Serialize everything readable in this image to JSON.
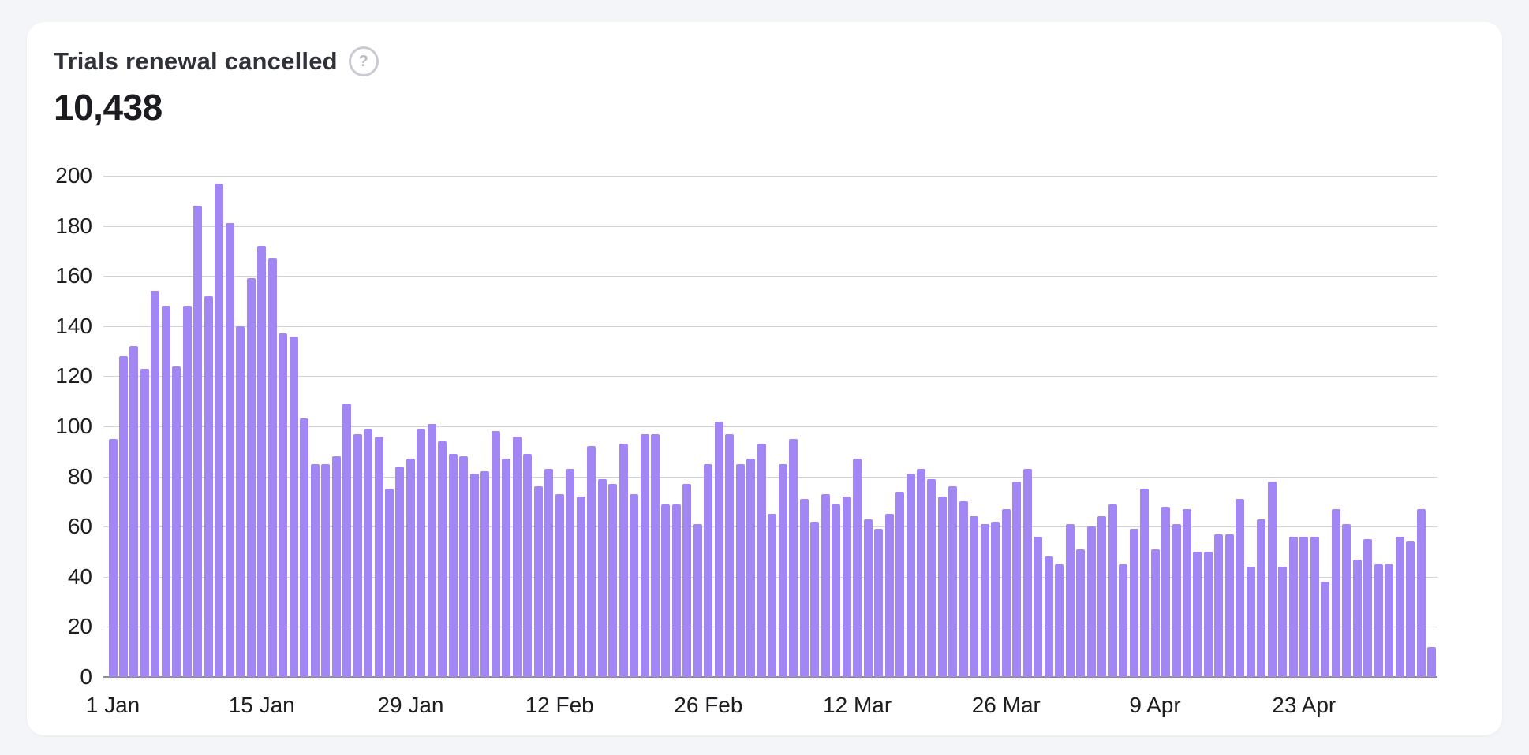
{
  "page": {
    "background": "#f4f5f8"
  },
  "card": {
    "title": "Trials renewal cancelled",
    "help_icon_glyph": "?",
    "total": "10,438"
  },
  "chart_data": {
    "type": "bar",
    "title": "Trials renewal cancelled",
    "total": 10438,
    "ylim": [
      0,
      200
    ],
    "y_ticks": [
      0,
      20,
      40,
      60,
      80,
      100,
      120,
      140,
      160,
      180,
      200
    ],
    "x_tick_labels": [
      "1 Jan",
      "15 Jan",
      "29 Jan",
      "12 Feb",
      "26 Feb",
      "12 Mar",
      "26 Mar",
      "9 Apr",
      "23 Apr"
    ],
    "x_tick_day_indices": [
      0,
      14,
      28,
      42,
      56,
      70,
      84,
      98,
      112
    ],
    "grid": "on",
    "legend": "none",
    "bar_color": "#a287f4",
    "grid_color": "#d2d3d7",
    "axis_line_color": "#8b8d92",
    "x": [
      "1 Jan",
      "2 Jan",
      "3 Jan",
      "4 Jan",
      "5 Jan",
      "6 Jan",
      "7 Jan",
      "8 Jan",
      "9 Jan",
      "10 Jan",
      "11 Jan",
      "12 Jan",
      "13 Jan",
      "14 Jan",
      "15 Jan",
      "16 Jan",
      "17 Jan",
      "18 Jan",
      "19 Jan",
      "20 Jan",
      "21 Jan",
      "22 Jan",
      "23 Jan",
      "24 Jan",
      "25 Jan",
      "26 Jan",
      "27 Jan",
      "28 Jan",
      "29 Jan",
      "30 Jan",
      "31 Jan",
      "1 Feb",
      "2 Feb",
      "3 Feb",
      "4 Feb",
      "5 Feb",
      "6 Feb",
      "7 Feb",
      "8 Feb",
      "9 Feb",
      "10 Feb",
      "11 Feb",
      "12 Feb",
      "13 Feb",
      "14 Feb",
      "15 Feb",
      "16 Feb",
      "17 Feb",
      "18 Feb",
      "19 Feb",
      "20 Feb",
      "21 Feb",
      "22 Feb",
      "23 Feb",
      "24 Feb",
      "25 Feb",
      "26 Feb",
      "27 Feb",
      "28 Feb",
      "1 Mar",
      "2 Mar",
      "3 Mar",
      "4 Mar",
      "5 Mar",
      "6 Mar",
      "7 Mar",
      "8 Mar",
      "9 Mar",
      "10 Mar",
      "11 Mar",
      "12 Mar",
      "13 Mar",
      "14 Mar",
      "15 Mar",
      "16 Mar",
      "17 Mar",
      "18 Mar",
      "19 Mar",
      "20 Mar",
      "21 Mar",
      "22 Mar",
      "23 Mar",
      "24 Mar",
      "25 Mar",
      "26 Mar",
      "27 Mar",
      "28 Mar",
      "29 Mar",
      "30 Mar",
      "31 Mar",
      "1 Apr",
      "2 Apr",
      "3 Apr",
      "4 Apr",
      "5 Apr",
      "6 Apr",
      "7 Apr",
      "8 Apr",
      "9 Apr",
      "10 Apr",
      "11 Apr",
      "12 Apr",
      "13 Apr",
      "14 Apr",
      "15 Apr",
      "16 Apr",
      "17 Apr",
      "18 Apr",
      "19 Apr",
      "20 Apr",
      "21 Apr",
      "22 Apr",
      "23 Apr",
      "24 Apr",
      "25 Apr",
      "26 Apr",
      "27 Apr",
      "28 Apr",
      "29 Apr",
      "30 Apr",
      "1 May",
      "2 May",
      "3 May",
      "4 May",
      "5 May"
    ],
    "values": [
      95,
      128,
      132,
      123,
      154,
      148,
      124,
      148,
      188,
      152,
      197,
      181,
      140,
      159,
      172,
      167,
      137,
      136,
      103,
      85,
      85,
      88,
      109,
      97,
      99,
      96,
      75,
      84,
      87,
      99,
      101,
      94,
      89,
      88,
      81,
      82,
      98,
      87,
      96,
      89,
      76,
      83,
      73,
      83,
      72,
      92,
      79,
      77,
      93,
      73,
      97,
      97,
      69,
      69,
      77,
      61,
      85,
      102,
      97,
      85,
      87,
      93,
      65,
      85,
      95,
      71,
      62,
      73,
      69,
      72,
      87,
      63,
      59,
      65,
      74,
      81,
      83,
      79,
      72,
      76,
      70,
      64,
      61,
      62,
      67,
      78,
      83,
      56,
      48,
      45,
      61,
      51,
      60,
      64,
      69,
      45,
      59,
      75,
      51,
      68,
      61,
      67,
      50,
      50,
      57,
      57,
      71,
      44,
      63,
      78,
      44,
      56,
      56,
      56,
      38,
      67,
      61,
      47,
      55,
      45,
      45,
      56,
      54,
      67,
      12
    ]
  }
}
